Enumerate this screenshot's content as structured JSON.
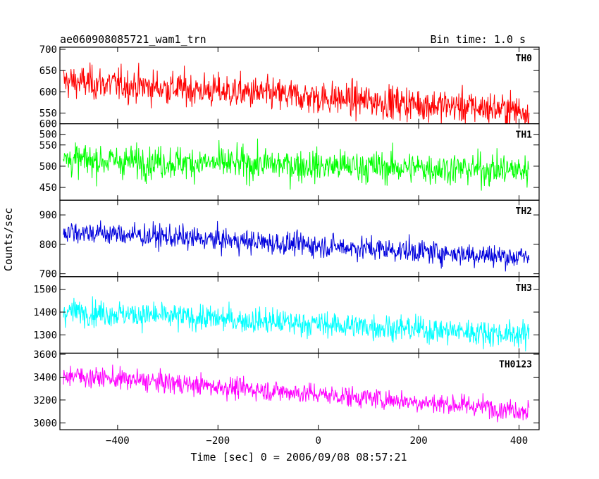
{
  "title": "ae060908085721_wam1_trn",
  "bin_time": "Bin time: 1.0 s",
  "ylabel": "Counts/sec",
  "xlabel": "Time [sec] 0 = 2006/09/08 08:57:21",
  "chart_data": {
    "type": "line",
    "xlim": [
      -515,
      440
    ],
    "x_range": [
      -508,
      420
    ],
    "x_ticks": [
      -400,
      -200,
      0,
      200,
      400
    ],
    "x_tick_labels": [
      "−400",
      "−200",
      "0",
      "200",
      "400"
    ],
    "series": [
      {
        "name": "TH0",
        "color": "#ff0000",
        "ylim": [
          525,
          705
        ],
        "yticks": [
          500,
          550,
          600,
          650,
          700
        ],
        "start_mean": 625,
        "end_mean": 555,
        "noise": 28
      },
      {
        "name": "TH1",
        "color": "#00ff00",
        "ylim": [
          420,
          600
        ],
        "yticks": [
          450,
          500,
          550,
          600
        ],
        "start_mean": 515,
        "end_mean": 490,
        "noise": 27
      },
      {
        "name": "TH2",
        "color": "#0000dd",
        "ylim": [
          690,
          950
        ],
        "yticks": [
          700,
          800,
          900
        ],
        "start_mean": 845,
        "end_mean": 755,
        "noise": 28
      },
      {
        "name": "TH3",
        "color": "#00ffff",
        "ylim": [
          1220,
          1555
        ],
        "yticks": [
          1300,
          1400,
          1500
        ],
        "start_mean": 1405,
        "end_mean": 1300,
        "noise": 40
      },
      {
        "name": "TH0123",
        "color": "#ff00ff",
        "ylim": [
          2940,
          3610
        ],
        "yticks": [
          3000,
          3200,
          3400,
          3600
        ],
        "start_mean": 3420,
        "end_mean": 3110,
        "noise": 65
      }
    ]
  }
}
